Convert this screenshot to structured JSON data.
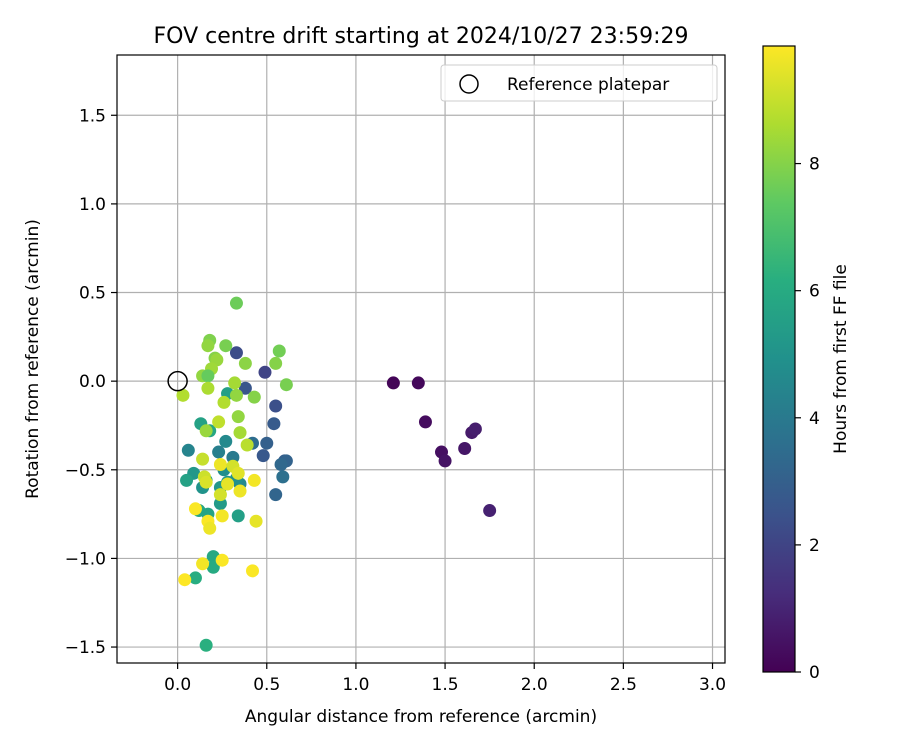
{
  "chart_data": {
    "type": "scatter",
    "title": "FOV centre drift starting at 2024/10/27 23:59:29",
    "xlabel": "Angular distance from reference (arcmin)",
    "ylabel": "Rotation from reference (arcmin)",
    "xlim": [
      -0.34,
      3.07
    ],
    "ylim": [
      -1.59,
      1.84
    ],
    "xticks": [
      0.0,
      0.5,
      1.0,
      1.5,
      2.0,
      2.5,
      3.0
    ],
    "xtick_labels": [
      "0.0",
      "0.5",
      "1.0",
      "1.5",
      "2.0",
      "2.5",
      "3.0"
    ],
    "yticks": [
      -1.5,
      -1.0,
      -0.5,
      0.0,
      0.5,
      1.0,
      1.5
    ],
    "ytick_labels": [
      "−1.5",
      "−1.0",
      "−0.5",
      "0.0",
      "0.5",
      "1.0",
      "1.5"
    ],
    "grid": true,
    "legend": {
      "placement": "top-right",
      "entries": [
        "Reference platepar"
      ]
    },
    "reference_point": {
      "x": 0.0,
      "y": 0.0,
      "label": "Reference platepar"
    },
    "colorbar": {
      "label": "Hours from first FF file",
      "colormap": "viridis",
      "range": [
        0,
        9.85
      ],
      "ticks": [
        0,
        2,
        4,
        6,
        8
      ],
      "tick_labels": [
        "0",
        "2",
        "4",
        "6",
        "8"
      ]
    },
    "points": [
      {
        "x": 1.21,
        "y": -0.01,
        "c": 0.1
      },
      {
        "x": 1.35,
        "y": -0.01,
        "c": 0.2
      },
      {
        "x": 1.39,
        "y": -0.23,
        "c": 0.3
      },
      {
        "x": 1.48,
        "y": -0.4,
        "c": 0.4
      },
      {
        "x": 1.5,
        "y": -0.45,
        "c": 0.5
      },
      {
        "x": 1.61,
        "y": -0.38,
        "c": 0.6
      },
      {
        "x": 1.65,
        "y": -0.29,
        "c": 0.7
      },
      {
        "x": 1.67,
        "y": -0.27,
        "c": 0.8
      },
      {
        "x": 1.75,
        "y": -0.73,
        "c": 0.9
      },
      {
        "x": 0.33,
        "y": 0.16,
        "c": 2.3
      },
      {
        "x": 0.49,
        "y": 0.05,
        "c": 2.0
      },
      {
        "x": 0.38,
        "y": -0.04,
        "c": 2.6
      },
      {
        "x": 0.55,
        "y": -0.14,
        "c": 2.4
      },
      {
        "x": 0.54,
        "y": -0.24,
        "c": 2.8
      },
      {
        "x": 0.5,
        "y": -0.35,
        "c": 3.0
      },
      {
        "x": 0.48,
        "y": -0.42,
        "c": 2.7
      },
      {
        "x": 0.6,
        "y": -0.45,
        "c": 2.9
      },
      {
        "x": 0.61,
        "y": -0.45,
        "c": 3.1
      },
      {
        "x": 0.58,
        "y": -0.47,
        "c": 3.3
      },
      {
        "x": 0.59,
        "y": -0.54,
        "c": 3.6
      },
      {
        "x": 0.55,
        "y": -0.64,
        "c": 3.2
      },
      {
        "x": 0.42,
        "y": -0.35,
        "c": 3.5
      },
      {
        "x": 0.31,
        "y": -0.43,
        "c": 4.0
      },
      {
        "x": 0.23,
        "y": -0.4,
        "c": 4.2
      },
      {
        "x": 0.06,
        "y": -0.39,
        "c": 4.4
      },
      {
        "x": 0.27,
        "y": -0.34,
        "c": 4.6
      },
      {
        "x": 0.13,
        "y": -0.24,
        "c": 5.6
      },
      {
        "x": 0.18,
        "y": -0.28,
        "c": 5.8
      },
      {
        "x": 0.28,
        "y": -0.07,
        "c": 5.5
      },
      {
        "x": 0.26,
        "y": -0.5,
        "c": 4.8
      },
      {
        "x": 0.35,
        "y": -0.58,
        "c": 4.6
      },
      {
        "x": 0.09,
        "y": -0.52,
        "c": 5.2
      },
      {
        "x": 0.05,
        "y": -0.56,
        "c": 5.6
      },
      {
        "x": 0.14,
        "y": -0.6,
        "c": 5.0
      },
      {
        "x": 0.16,
        "y": -0.56,
        "c": 5.4
      },
      {
        "x": 0.24,
        "y": -0.6,
        "c": 5.2
      },
      {
        "x": 0.28,
        "y": -0.57,
        "c": 5.0
      },
      {
        "x": 0.33,
        "y": -0.55,
        "c": 4.9
      },
      {
        "x": 0.24,
        "y": -0.69,
        "c": 5.3
      },
      {
        "x": 0.12,
        "y": -0.73,
        "c": 5.8
      },
      {
        "x": 0.17,
        "y": -0.75,
        "c": 5.7
      },
      {
        "x": 0.34,
        "y": -0.76,
        "c": 5.5
      },
      {
        "x": 0.2,
        "y": -0.99,
        "c": 5.9
      },
      {
        "x": 0.2,
        "y": -1.05,
        "c": 6.0
      },
      {
        "x": 0.1,
        "y": -1.11,
        "c": 6.1
      },
      {
        "x": 0.16,
        "y": -1.49,
        "c": 6.2
      },
      {
        "x": 0.33,
        "y": 0.44,
        "c": 7.6
      },
      {
        "x": 0.18,
        "y": 0.23,
        "c": 7.9
      },
      {
        "x": 0.17,
        "y": 0.2,
        "c": 8.2
      },
      {
        "x": 0.27,
        "y": 0.2,
        "c": 7.8
      },
      {
        "x": 0.57,
        "y": 0.17,
        "c": 7.7
      },
      {
        "x": 0.21,
        "y": 0.13,
        "c": 8.0
      },
      {
        "x": 0.22,
        "y": 0.12,
        "c": 8.3
      },
      {
        "x": 0.38,
        "y": 0.1,
        "c": 8.1
      },
      {
        "x": 0.55,
        "y": 0.1,
        "c": 8.0
      },
      {
        "x": 0.19,
        "y": 0.07,
        "c": 8.4
      },
      {
        "x": 0.14,
        "y": 0.03,
        "c": 8.2
      },
      {
        "x": 0.17,
        "y": 0.03,
        "c": 7.5
      },
      {
        "x": 0.32,
        "y": -0.01,
        "c": 8.5
      },
      {
        "x": 0.61,
        "y": -0.02,
        "c": 7.8
      },
      {
        "x": 0.17,
        "y": -0.04,
        "c": 8.6
      },
      {
        "x": 0.03,
        "y": -0.08,
        "c": 8.7
      },
      {
        "x": 0.33,
        "y": -0.08,
        "c": 8.2
      },
      {
        "x": 0.43,
        "y": -0.09,
        "c": 8.0
      },
      {
        "x": 0.26,
        "y": -0.12,
        "c": 8.7
      },
      {
        "x": 0.34,
        "y": -0.2,
        "c": 8.2
      },
      {
        "x": 0.23,
        "y": -0.23,
        "c": 8.9
      },
      {
        "x": 0.16,
        "y": -0.28,
        "c": 8.3
      },
      {
        "x": 0.35,
        "y": -0.29,
        "c": 8.5
      },
      {
        "x": 0.39,
        "y": -0.36,
        "c": 8.8
      },
      {
        "x": 0.14,
        "y": -0.44,
        "c": 9.0
      },
      {
        "x": 0.24,
        "y": -0.47,
        "c": 9.6
      },
      {
        "x": 0.31,
        "y": -0.48,
        "c": 9.2
      },
      {
        "x": 0.34,
        "y": -0.52,
        "c": 9.4
      },
      {
        "x": 0.15,
        "y": -0.54,
        "c": 9.1
      },
      {
        "x": 0.16,
        "y": -0.57,
        "c": 9.3
      },
      {
        "x": 0.43,
        "y": -0.56,
        "c": 9.7
      },
      {
        "x": 0.28,
        "y": -0.58,
        "c": 9.5
      },
      {
        "x": 0.35,
        "y": -0.62,
        "c": 9.6
      },
      {
        "x": 0.24,
        "y": -0.64,
        "c": 9.2
      },
      {
        "x": 0.1,
        "y": -0.72,
        "c": 9.8
      },
      {
        "x": 0.25,
        "y": -0.76,
        "c": 9.7
      },
      {
        "x": 0.17,
        "y": -0.79,
        "c": 9.8
      },
      {
        "x": 0.44,
        "y": -0.79,
        "c": 9.5
      },
      {
        "x": 0.18,
        "y": -0.83,
        "c": 9.6
      },
      {
        "x": 0.25,
        "y": -1.01,
        "c": 9.8
      },
      {
        "x": 0.14,
        "y": -1.03,
        "c": 9.7
      },
      {
        "x": 0.42,
        "y": -1.07,
        "c": 9.8
      },
      {
        "x": 0.04,
        "y": -1.12,
        "c": 9.9
      }
    ]
  }
}
